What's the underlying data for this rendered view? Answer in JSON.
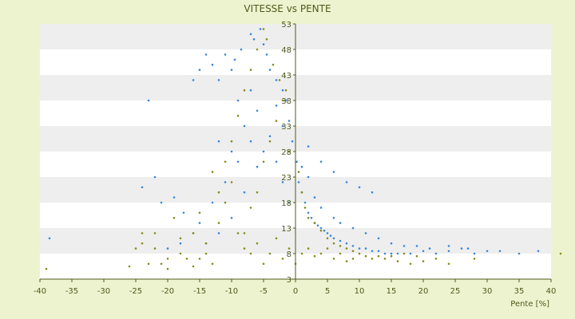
{
  "chart_data": {
    "type": "scatter",
    "title": "VITESSE vs PENTE",
    "xlabel": "Pente [%]",
    "ylabel": "",
    "xlim": [
      -40,
      40
    ],
    "ylim": [
      3,
      53
    ],
    "x_ticks": [
      -40,
      -35,
      -30,
      -25,
      -20,
      -15,
      -10,
      -5,
      0,
      5,
      10,
      15,
      20,
      25,
      30,
      35,
      40
    ],
    "y_ticks": [
      3,
      8,
      13,
      18,
      23,
      28,
      33,
      38,
      43,
      48,
      53
    ],
    "grid": "horizontal alternating bands",
    "legend": "none",
    "colors": {
      "series_a": "#3a87d8",
      "series_b": "#8a8a1a",
      "band": "#eeeeee",
      "axis": "#4d5a1e",
      "background": "#eef3cf"
    },
    "series": [
      {
        "color": "#3a87d8",
        "points": [
          [
            -38.5,
            11
          ],
          [
            -23,
            38
          ],
          [
            -22,
            23
          ],
          [
            -24,
            21
          ],
          [
            -21,
            18
          ],
          [
            -19,
            19
          ],
          [
            -17.5,
            16
          ],
          [
            -16,
            42
          ],
          [
            -15,
            44
          ],
          [
            -14,
            47
          ],
          [
            -13,
            45
          ],
          [
            -12,
            42
          ],
          [
            -11,
            47
          ],
          [
            -10,
            44
          ],
          [
            -9.5,
            46
          ],
          [
            -8.5,
            48
          ],
          [
            -7,
            51
          ],
          [
            -6.5,
            50
          ],
          [
            -5.5,
            52
          ],
          [
            -5,
            49
          ],
          [
            -4.5,
            47
          ],
          [
            -4,
            44
          ],
          [
            -3,
            42
          ],
          [
            -2,
            40
          ],
          [
            -1.5,
            38
          ],
          [
            -1,
            34
          ],
          [
            -0.5,
            30
          ],
          [
            0.2,
            26
          ],
          [
            0.5,
            22
          ],
          [
            1,
            20
          ],
          [
            1.5,
            18
          ],
          [
            2,
            16
          ],
          [
            2.5,
            15
          ],
          [
            3,
            14
          ],
          [
            3.5,
            13.5
          ],
          [
            4,
            13
          ],
          [
            4.5,
            12.5
          ],
          [
            5,
            12
          ],
          [
            5.5,
            11.5
          ],
          [
            6,
            11
          ],
          [
            7,
            10.5
          ],
          [
            8,
            10
          ],
          [
            9,
            9.5
          ],
          [
            10,
            9
          ],
          [
            11,
            9
          ],
          [
            12,
            8.5
          ],
          [
            13,
            8.5
          ],
          [
            14,
            8
          ],
          [
            15,
            8
          ],
          [
            16,
            8
          ],
          [
            18,
            8
          ],
          [
            20,
            8.5
          ],
          [
            22,
            8
          ],
          [
            24,
            8.5
          ],
          [
            26,
            9
          ],
          [
            28,
            8
          ],
          [
            30,
            8.5
          ],
          [
            32,
            8.5
          ],
          [
            35,
            8
          ],
          [
            38,
            8.5
          ],
          [
            -12,
            30
          ],
          [
            -10,
            28
          ],
          [
            -8,
            33
          ],
          [
            -6,
            36
          ],
          [
            -4,
            31
          ],
          [
            -3,
            26
          ],
          [
            -2,
            22
          ],
          [
            -1,
            18
          ],
          [
            -6,
            25
          ],
          [
            -8,
            20
          ],
          [
            -10,
            15
          ],
          [
            -12,
            12
          ],
          [
            -14,
            10
          ],
          [
            -9,
            38
          ],
          [
            -7,
            40
          ],
          [
            -3,
            37
          ],
          [
            -2,
            33
          ],
          [
            1,
            25
          ],
          [
            2,
            23
          ],
          [
            3,
            19
          ],
          [
            4,
            17
          ],
          [
            6,
            15
          ],
          [
            7,
            14
          ],
          [
            9,
            13
          ],
          [
            11,
            12
          ],
          [
            13,
            11
          ],
          [
            15,
            10
          ],
          [
            17,
            9.5
          ],
          [
            19,
            9.5
          ],
          [
            21,
            9
          ],
          [
            24,
            9.5
          ],
          [
            27,
            9
          ],
          [
            10,
            21
          ],
          [
            12,
            20
          ],
          [
            8,
            22
          ],
          [
            6,
            24
          ],
          [
            4,
            26
          ],
          [
            2,
            29
          ],
          [
            -5,
            28
          ],
          [
            -7,
            30
          ],
          [
            -9,
            26
          ],
          [
            -11,
            22
          ],
          [
            -13,
            18
          ],
          [
            -15,
            14
          ],
          [
            -16,
            12
          ],
          [
            -18,
            10
          ],
          [
            -20,
            9
          ]
        ]
      },
      {
        "color": "#8a8a1a",
        "points": [
          [
            -39,
            5
          ],
          [
            -26,
            5.5
          ],
          [
            -25,
            9
          ],
          [
            -24,
            10
          ],
          [
            -22,
            12
          ],
          [
            -21,
            6
          ],
          [
            -20,
            5
          ],
          [
            -19,
            15
          ],
          [
            -18,
            11
          ],
          [
            -17,
            7
          ],
          [
            -16,
            12
          ],
          [
            -15,
            16
          ],
          [
            -14,
            8
          ],
          [
            -13,
            6
          ],
          [
            -12,
            14
          ],
          [
            -11,
            18
          ],
          [
            -10,
            22
          ],
          [
            -9,
            12
          ],
          [
            -8,
            9
          ],
          [
            -7,
            17
          ],
          [
            -6,
            20
          ],
          [
            -5,
            26
          ],
          [
            -4,
            30
          ],
          [
            -3,
            34
          ],
          [
            -2,
            38
          ],
          [
            -1,
            28
          ],
          [
            0.5,
            24
          ],
          [
            1,
            20
          ],
          [
            1.5,
            17
          ],
          [
            2,
            15
          ],
          [
            3,
            14
          ],
          [
            4,
            12.5
          ],
          [
            5,
            11
          ],
          [
            6,
            10
          ],
          [
            7,
            9.5
          ],
          [
            8,
            9
          ],
          [
            9,
            8.5
          ],
          [
            10,
            8
          ],
          [
            11,
            7.5
          ],
          [
            12,
            7
          ],
          [
            13,
            7.5
          ],
          [
            14,
            7
          ],
          [
            16,
            6.5
          ],
          [
            18,
            6
          ],
          [
            20,
            6.5
          ],
          [
            22,
            7
          ],
          [
            24,
            6
          ],
          [
            28,
            7
          ],
          [
            -5,
            52
          ],
          [
            -4.5,
            50
          ],
          [
            -6,
            48
          ],
          [
            -3.5,
            45
          ],
          [
            -2.5,
            42
          ],
          [
            -1.5,
            40
          ],
          [
            -7,
            44
          ],
          [
            -8,
            40
          ],
          [
            -9,
            35
          ],
          [
            -10,
            30
          ],
          [
            -11,
            26
          ],
          [
            -12,
            20
          ],
          [
            -13,
            24
          ],
          [
            -14,
            10
          ],
          [
            -15,
            7
          ],
          [
            -16,
            5.5
          ],
          [
            -18,
            8
          ],
          [
            -20,
            7
          ],
          [
            -22,
            9
          ],
          [
            -23,
            6
          ],
          [
            -24,
            12
          ],
          [
            0,
            6
          ],
          [
            -1,
            9
          ],
          [
            -2,
            7
          ],
          [
            -3,
            11
          ],
          [
            -4,
            8
          ],
          [
            -5,
            6
          ],
          [
            -6,
            10
          ],
          [
            -7,
            8
          ],
          [
            -8,
            12
          ],
          [
            1,
            8
          ],
          [
            2,
            9
          ],
          [
            3,
            7.5
          ],
          [
            4,
            8
          ],
          [
            5,
            9
          ],
          [
            6,
            7
          ],
          [
            7,
            8
          ],
          [
            8,
            6.5
          ],
          [
            9,
            7
          ],
          [
            15,
            7.5
          ],
          [
            17,
            8
          ],
          [
            19,
            7.5
          ],
          [
            41.5,
            8
          ]
        ]
      }
    ]
  }
}
